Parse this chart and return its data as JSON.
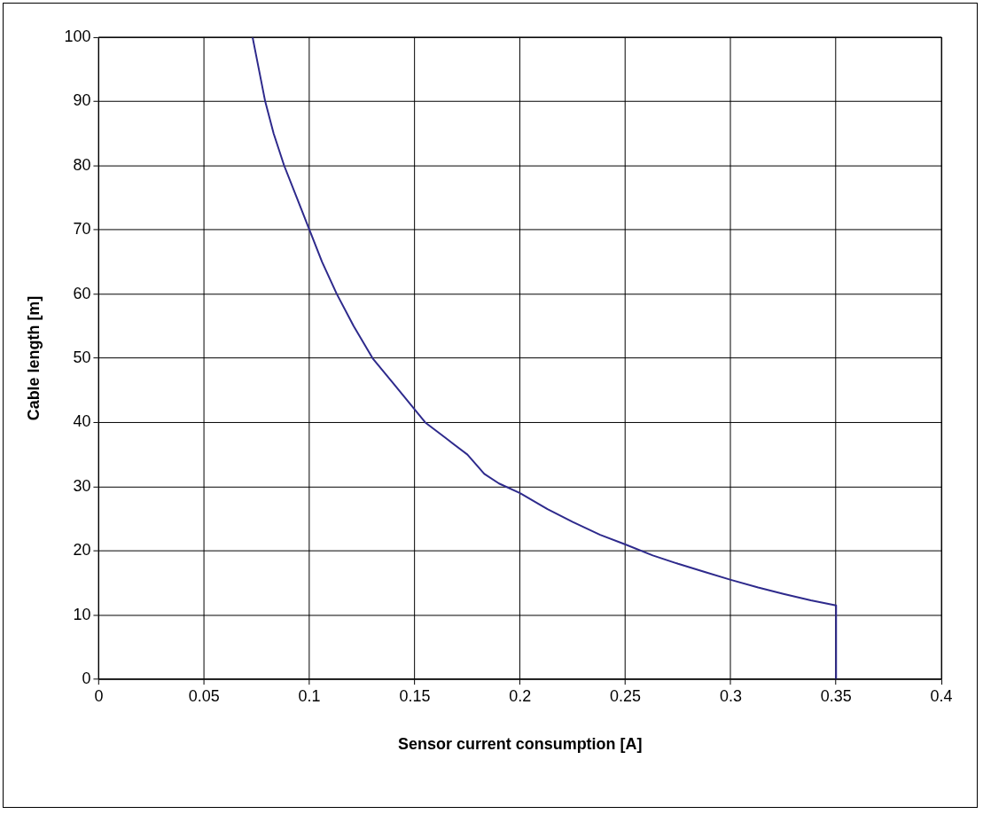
{
  "chart_data": {
    "type": "line",
    "xlabel": "Sensor current consumption [A]",
    "ylabel": "Cable length [m]",
    "x": [
      0.073,
      0.076,
      0.079,
      0.083,
      0.088,
      0.094,
      0.1,
      0.106,
      0.113,
      0.121,
      0.13,
      0.14,
      0.15,
      0.155,
      0.165,
      0.175,
      0.183,
      0.19,
      0.2,
      0.213,
      0.225,
      0.238,
      0.25,
      0.263,
      0.275,
      0.288,
      0.3,
      0.313,
      0.325,
      0.338,
      0.35,
      0.35
    ],
    "series": [
      {
        "color": "#2e2a8c",
        "values": [
          100,
          95,
          90,
          85,
          80,
          75,
          70,
          65,
          60,
          55,
          50,
          46,
          42,
          40,
          37.5,
          35,
          32,
          30.5,
          29,
          26.5,
          24.5,
          22.5,
          21,
          19.3,
          18,
          16.7,
          15.5,
          14.3,
          13.3,
          12.3,
          11.5,
          0
        ]
      }
    ],
    "xlim": [
      0,
      0.4
    ],
    "xticks": [
      0,
      0.05,
      0.1,
      0.15,
      0.2,
      0.25,
      0.3,
      0.35,
      0.4
    ],
    "ylim": [
      0,
      100
    ],
    "yticks": [
      0,
      10,
      20,
      30,
      40,
      50,
      60,
      70,
      80,
      90,
      100
    ],
    "grid": true,
    "legend": false,
    "marker": "none",
    "line_style": "solid"
  }
}
